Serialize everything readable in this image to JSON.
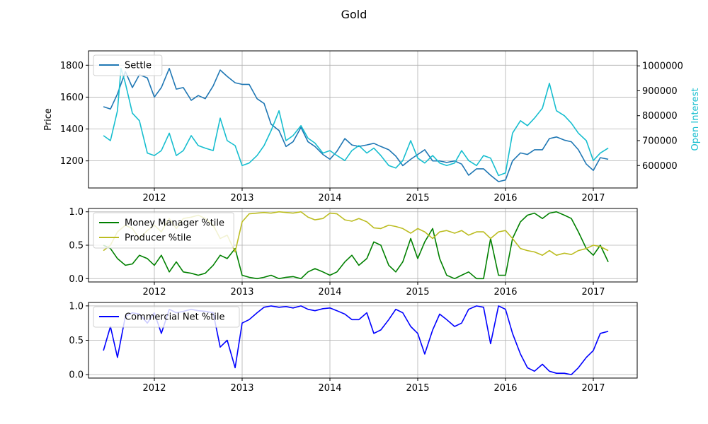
{
  "chart_data": {
    "title": "Gold",
    "x_ticks": [
      "2012",
      "2013",
      "2014",
      "2015",
      "2016",
      "2017"
    ],
    "x_range": [
      2011.25,
      2017.5
    ],
    "panels": [
      {
        "type": "line",
        "ylabel": "Price",
        "ylabel_right": "Open Interest",
        "ylim": [
          1030,
          1890
        ],
        "ylim_right": [
          510000,
          1060000
        ],
        "y_ticks": [
          1200,
          1400,
          1600,
          1800
        ],
        "y_ticks_right": [
          600000,
          700000,
          800000,
          900000,
          1000000
        ],
        "y_tick_labels_right": [
          "600000",
          "700000",
          "800000",
          "900000",
          "1000000"
        ],
        "grid": true,
        "legend_position": "upper-left",
        "series": [
          {
            "name": "Settle",
            "axis": "left",
            "color": "#1f77b4",
            "x": [
              2011.42,
              2011.5,
              2011.58,
              2011.67,
              2011.75,
              2011.83,
              2011.92,
              2012.0,
              2012.08,
              2012.17,
              2012.25,
              2012.33,
              2012.42,
              2012.5,
              2012.58,
              2012.67,
              2012.75,
              2012.83,
              2012.92,
              2013.0,
              2013.08,
              2013.17,
              2013.25,
              2013.33,
              2013.42,
              2013.5,
              2013.58,
              2013.67,
              2013.75,
              2013.83,
              2013.92,
              2014.0,
              2014.08,
              2014.17,
              2014.25,
              2014.33,
              2014.42,
              2014.5,
              2014.58,
              2014.67,
              2014.75,
              2014.83,
              2014.92,
              2015.0,
              2015.08,
              2015.17,
              2015.25,
              2015.33,
              2015.42,
              2015.5,
              2015.58,
              2015.67,
              2015.75,
              2015.83,
              2015.92,
              2016.0,
              2016.08,
              2016.17,
              2016.25,
              2016.33,
              2016.42,
              2016.5,
              2016.58,
              2016.67,
              2016.75,
              2016.83,
              2016.92,
              2017.0,
              2017.08,
              2017.17
            ],
            "y": [
              1540,
              1525,
              1620,
              1760,
              1660,
              1740,
              1720,
              1600,
              1660,
              1780,
              1650,
              1660,
              1580,
              1610,
              1590,
              1670,
              1770,
              1730,
              1690,
              1680,
              1680,
              1590,
              1560,
              1430,
              1390,
              1290,
              1320,
              1410,
              1320,
              1290,
              1240,
              1210,
              1260,
              1340,
              1300,
              1290,
              1300,
              1310,
              1290,
              1270,
              1230,
              1170,
              1210,
              1240,
              1270,
              1200,
              1200,
              1190,
              1200,
              1180,
              1110,
              1150,
              1150,
              1110,
              1070,
              1080,
              1200,
              1250,
              1240,
              1270,
              1270,
              1340,
              1350,
              1330,
              1320,
              1270,
              1180,
              1140,
              1220,
              1210
            ]
          },
          {
            "name": "Open Interest",
            "axis": "right",
            "color": "#17becf",
            "x": [
              2011.42,
              2011.5,
              2011.58,
              2011.62,
              2011.67,
              2011.75,
              2011.83,
              2011.92,
              2012.0,
              2012.08,
              2012.17,
              2012.25,
              2012.33,
              2012.42,
              2012.5,
              2012.58,
              2012.67,
              2012.75,
              2012.83,
              2012.92,
              2013.0,
              2013.08,
              2013.17,
              2013.25,
              2013.33,
              2013.42,
              2013.5,
              2013.58,
              2013.67,
              2013.75,
              2013.83,
              2013.92,
              2014.0,
              2014.08,
              2014.17,
              2014.25,
              2014.33,
              2014.42,
              2014.5,
              2014.58,
              2014.67,
              2014.75,
              2014.83,
              2014.92,
              2015.0,
              2015.08,
              2015.17,
              2015.25,
              2015.33,
              2015.42,
              2015.5,
              2015.58,
              2015.67,
              2015.75,
              2015.83,
              2015.92,
              2016.0,
              2016.08,
              2016.17,
              2016.25,
              2016.33,
              2016.42,
              2016.5,
              2016.58,
              2016.67,
              2016.75,
              2016.83,
              2016.92,
              2017.0,
              2017.08,
              2017.17
            ],
            "y": [
              720000,
              700000,
              820000,
              990000,
              930000,
              810000,
              780000,
              650000,
              640000,
              660000,
              730000,
              640000,
              660000,
              720000,
              680000,
              670000,
              660000,
              790000,
              700000,
              680000,
              600000,
              610000,
              640000,
              680000,
              740000,
              820000,
              700000,
              720000,
              760000,
              710000,
              690000,
              650000,
              660000,
              640000,
              620000,
              660000,
              680000,
              650000,
              670000,
              640000,
              600000,
              590000,
              620000,
              700000,
              630000,
              610000,
              640000,
              610000,
              600000,
              610000,
              660000,
              620000,
              600000,
              640000,
              630000,
              560000,
              570000,
              730000,
              780000,
              760000,
              790000,
              830000,
              930000,
              820000,
              800000,
              770000,
              730000,
              700000,
              620000,
              650000,
              670000
            ]
          }
        ]
      },
      {
        "type": "line",
        "ylim": [
          -0.05,
          1.05
        ],
        "y_ticks": [
          0.0,
          0.5,
          1.0
        ],
        "y_tick_labels": [
          "0.0",
          "0.5",
          "1.0"
        ],
        "grid": true,
        "legend_position": "upper-left",
        "series": [
          {
            "name": "Money Manager %tile",
            "color": "#008000",
            "x": [
              2011.42,
              2011.5,
              2011.58,
              2011.67,
              2011.75,
              2011.83,
              2011.92,
              2012.0,
              2012.08,
              2012.17,
              2012.25,
              2012.33,
              2012.42,
              2012.5,
              2012.58,
              2012.67,
              2012.75,
              2012.83,
              2012.92,
              2013.0,
              2013.08,
              2013.17,
              2013.25,
              2013.33,
              2013.42,
              2013.5,
              2013.58,
              2013.67,
              2013.75,
              2013.83,
              2013.92,
              2014.0,
              2014.08,
              2014.17,
              2014.25,
              2014.33,
              2014.42,
              2014.5,
              2014.58,
              2014.67,
              2014.75,
              2014.83,
              2014.92,
              2015.0,
              2015.08,
              2015.17,
              2015.25,
              2015.33,
              2015.42,
              2015.5,
              2015.58,
              2015.67,
              2015.75,
              2015.83,
              2015.92,
              2016.0,
              2016.08,
              2016.17,
              2016.25,
              2016.33,
              2016.42,
              2016.5,
              2016.58,
              2016.67,
              2016.75,
              2016.83,
              2016.92,
              2017.0,
              2017.08,
              2017.17
            ],
            "y": [
              0.5,
              0.45,
              0.3,
              0.2,
              0.22,
              0.35,
              0.3,
              0.2,
              0.35,
              0.1,
              0.25,
              0.1,
              0.08,
              0.05,
              0.08,
              0.2,
              0.35,
              0.3,
              0.45,
              0.05,
              0.02,
              0.0,
              0.02,
              0.05,
              0.0,
              0.02,
              0.03,
              0.0,
              0.1,
              0.15,
              0.1,
              0.05,
              0.1,
              0.25,
              0.35,
              0.2,
              0.3,
              0.55,
              0.5,
              0.2,
              0.1,
              0.25,
              0.6,
              0.3,
              0.55,
              0.75,
              0.3,
              0.05,
              0.0,
              0.05,
              0.1,
              0.0,
              0.0,
              0.6,
              0.05,
              0.05,
              0.6,
              0.85,
              0.95,
              0.98,
              0.9,
              0.98,
              1.0,
              0.95,
              0.9,
              0.7,
              0.45,
              0.35,
              0.5,
              0.25
            ]
          },
          {
            "name": "Producer %tile",
            "color": "#bcbd22",
            "x": [
              2011.42,
              2011.5,
              2011.58,
              2011.67,
              2011.75,
              2011.83,
              2011.92,
              2012.0,
              2012.08,
              2012.17,
              2012.25,
              2012.33,
              2012.42,
              2012.5,
              2012.58,
              2012.67,
              2012.75,
              2012.83,
              2012.92,
              2013.0,
              2013.08,
              2013.17,
              2013.25,
              2013.33,
              2013.42,
              2013.5,
              2013.58,
              2013.67,
              2013.75,
              2013.83,
              2013.92,
              2014.0,
              2014.08,
              2014.17,
              2014.25,
              2014.33,
              2014.42,
              2014.5,
              2014.58,
              2014.67,
              2014.75,
              2014.83,
              2014.92,
              2015.0,
              2015.08,
              2015.17,
              2015.25,
              2015.33,
              2015.42,
              2015.5,
              2015.58,
              2015.67,
              2015.75,
              2015.83,
              2015.92,
              2016.0,
              2016.08,
              2016.17,
              2016.25,
              2016.33,
              2016.42,
              2016.5,
              2016.58,
              2016.67,
              2016.75,
              2016.83,
              2016.92,
              2017.0,
              2017.08,
              2017.17
            ],
            "y": [
              0.42,
              0.5,
              0.7,
              0.8,
              0.75,
              0.6,
              0.72,
              0.8,
              0.7,
              0.9,
              0.75,
              0.9,
              0.92,
              0.95,
              0.9,
              0.8,
              0.6,
              0.65,
              0.4,
              0.85,
              0.97,
              0.98,
              0.99,
              0.98,
              1.0,
              0.99,
              0.98,
              1.0,
              0.92,
              0.88,
              0.9,
              0.98,
              0.97,
              0.88,
              0.86,
              0.9,
              0.85,
              0.76,
              0.75,
              0.8,
              0.78,
              0.75,
              0.68,
              0.75,
              0.7,
              0.6,
              0.7,
              0.72,
              0.68,
              0.72,
              0.65,
              0.7,
              0.7,
              0.6,
              0.7,
              0.72,
              0.6,
              0.45,
              0.42,
              0.4,
              0.35,
              0.42,
              0.35,
              0.38,
              0.36,
              0.42,
              0.45,
              0.5,
              0.48,
              0.42
            ]
          }
        ]
      },
      {
        "type": "line",
        "ylim": [
          -0.05,
          1.05
        ],
        "y_ticks": [
          0.0,
          0.5,
          1.0
        ],
        "y_tick_labels": [
          "0.0",
          "0.5",
          "1.0"
        ],
        "grid": true,
        "legend_position": "upper-left",
        "series": [
          {
            "name": "Commercial Net %tile",
            "color": "#0000ff",
            "x": [
              2011.42,
              2011.5,
              2011.58,
              2011.67,
              2011.75,
              2011.83,
              2011.92,
              2012.0,
              2012.08,
              2012.17,
              2012.25,
              2012.33,
              2012.42,
              2012.5,
              2012.58,
              2012.67,
              2012.75,
              2012.83,
              2012.92,
              2013.0,
              2013.08,
              2013.17,
              2013.25,
              2013.33,
              2013.42,
              2013.5,
              2013.58,
              2013.67,
              2013.75,
              2013.83,
              2013.92,
              2014.0,
              2014.08,
              2014.17,
              2014.25,
              2014.33,
              2014.42,
              2014.5,
              2014.58,
              2014.67,
              2014.75,
              2014.83,
              2014.92,
              2015.0,
              2015.08,
              2015.17,
              2015.25,
              2015.33,
              2015.42,
              2015.5,
              2015.58,
              2015.67,
              2015.75,
              2015.83,
              2015.92,
              2016.0,
              2016.08,
              2016.17,
              2016.25,
              2016.33,
              2016.42,
              2016.5,
              2016.58,
              2016.67,
              2016.75,
              2016.83,
              2016.92,
              2017.0,
              2017.08,
              2017.17
            ],
            "y": [
              0.35,
              0.7,
              0.25,
              0.85,
              0.9,
              0.88,
              0.75,
              0.9,
              0.6,
              0.95,
              0.9,
              0.92,
              0.95,
              0.93,
              0.92,
              0.9,
              0.4,
              0.5,
              0.1,
              0.75,
              0.8,
              0.9,
              0.98,
              1.0,
              0.98,
              0.99,
              0.97,
              1.0,
              0.95,
              0.93,
              0.96,
              0.97,
              0.93,
              0.88,
              0.8,
              0.8,
              0.9,
              0.6,
              0.65,
              0.8,
              0.95,
              0.9,
              0.7,
              0.6,
              0.3,
              0.65,
              0.88,
              0.8,
              0.7,
              0.75,
              0.95,
              1.0,
              0.98,
              0.45,
              1.0,
              0.95,
              0.6,
              0.3,
              0.1,
              0.05,
              0.15,
              0.05,
              0.02,
              0.02,
              0.0,
              0.1,
              0.25,
              0.35,
              0.6,
              0.63
            ]
          }
        ]
      }
    ]
  }
}
